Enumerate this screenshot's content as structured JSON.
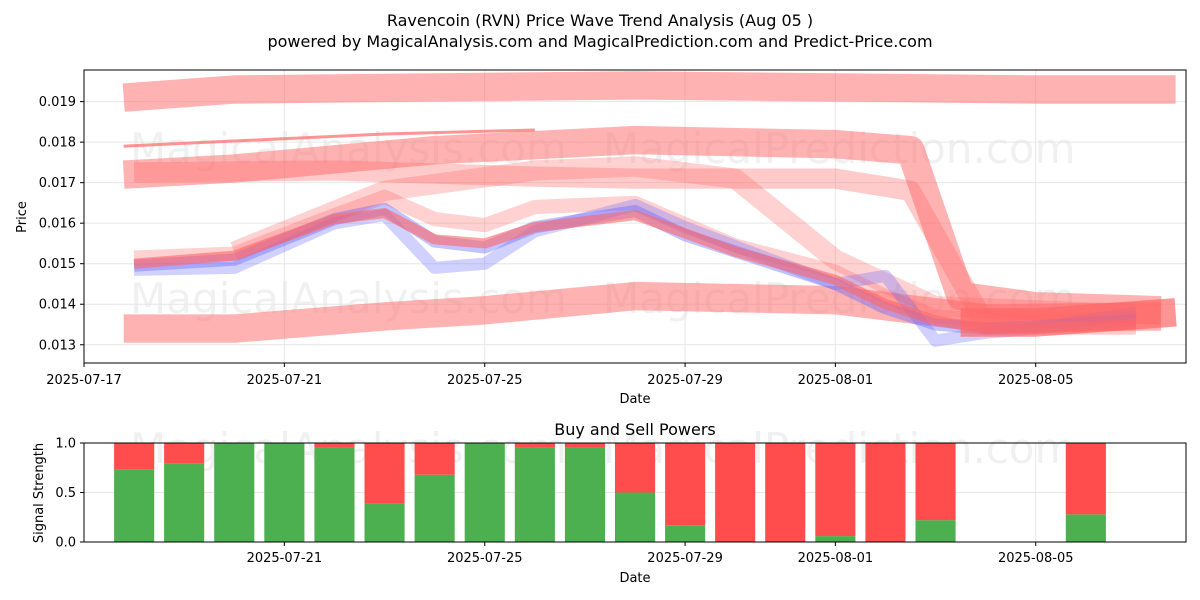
{
  "figure": {
    "title_line1": "Ravencoin (RVN) Price Wave Trend Analysis (Aug 05 )",
    "title_line2": "powered by MagicalAnalysis.com and MagicalPrediction.com and Predict-Price.com",
    "watermarks": [
      "MagicalAnalysis.com",
      "MagicalPrediction.com"
    ]
  },
  "colors": {
    "red_band": "#ff6666",
    "blue_band": "#6666ff",
    "buy": "#4caf50",
    "sell": "#ff4d4d",
    "grid": "#e6e6e6"
  },
  "chart_data": [
    {
      "type": "line",
      "title": "",
      "xlabel": "Date",
      "ylabel": "Price",
      "xlim": [
        "2025-07-17",
        "2025-08-08"
      ],
      "ylim": [
        0.01255,
        0.01978
      ],
      "grid": true,
      "xticks": [
        "2025-07-17",
        "2025-07-21",
        "2025-07-25",
        "2025-07-29",
        "2025-08-01",
        "2025-08-05"
      ],
      "yticks": [
        0.013,
        0.014,
        0.015,
        0.016,
        0.017,
        0.018,
        0.019
      ],
      "ytick_labels": [
        "0.013",
        "0.014",
        "0.015",
        "0.016",
        "0.017",
        "0.018",
        "0.019"
      ],
      "bands": [
        {
          "color": "red",
          "opacity": 0.5,
          "width": 0.0007,
          "points": [
            [
              "2025-07-17T19:00",
              0.0191
            ],
            [
              "2025-07-20",
              0.0193
            ],
            [
              "2025-07-24",
              0.01935
            ],
            [
              "2025-07-28",
              0.0194
            ],
            [
              "2025-08-01",
              0.01935
            ],
            [
              "2025-08-05",
              0.0193
            ],
            [
              "2025-08-07T19:00",
              0.0193
            ]
          ]
        },
        {
          "color": "red",
          "opacity": 0.5,
          "width": 0.0007,
          "points": [
            [
              "2025-07-17T19:00",
              0.0172
            ],
            [
              "2025-07-20",
              0.01735
            ],
            [
              "2025-07-24",
              0.0178
            ],
            [
              "2025-07-28",
              0.01805
            ],
            [
              "2025-08-01",
              0.01795
            ],
            [
              "2025-08-02T12:00",
              0.0178
            ],
            [
              "2025-08-03T12:00",
              0.0142
            ],
            [
              "2025-08-05",
              0.01395
            ],
            [
              "2025-08-07T12:00",
              0.01385
            ]
          ]
        },
        {
          "color": "red",
          "opacity": 0.5,
          "width": 0.0007,
          "points": [
            [
              "2025-07-17T19:00",
              0.0134
            ],
            [
              "2025-07-20",
              0.0134
            ],
            [
              "2025-07-23",
              0.0137
            ],
            [
              "2025-07-25",
              0.01385
            ],
            [
              "2025-07-28",
              0.0142
            ],
            [
              "2025-08-01",
              0.0141
            ],
            [
              "2025-08-04",
              0.01365
            ],
            [
              "2025-08-07T12:00",
              0.0137
            ]
          ]
        },
        {
          "color": "red",
          "opacity": 0.35,
          "width": 0.0005,
          "points": [
            [
              "2025-07-18",
              0.01725
            ],
            [
              "2025-07-22",
              0.0173
            ],
            [
              "2025-07-26",
              0.01715
            ],
            [
              "2025-07-28",
              0.0171
            ],
            [
              "2025-08-01",
              0.0171
            ],
            [
              "2025-08-02T12:00",
              0.0168
            ],
            [
              "2025-08-04",
              0.0135
            ],
            [
              "2025-08-07",
              0.0135
            ]
          ]
        },
        {
          "color": "red",
          "opacity": 0.3,
          "width": 0.0005,
          "points": [
            [
              "2025-07-20",
              0.0153
            ],
            [
              "2025-07-23",
              0.0168
            ],
            [
              "2025-07-26",
              0.0173
            ],
            [
              "2025-07-28",
              0.0174
            ],
            [
              "2025-07-30",
              0.0171
            ],
            [
              "2025-08-01",
              0.0151
            ],
            [
              "2025-08-03",
              0.01395
            ],
            [
              "2025-08-07",
              0.01375
            ]
          ]
        },
        {
          "color": "red",
          "opacity": 0.3,
          "width": 0.00035,
          "points": [
            [
              "2025-07-18",
              0.01515
            ],
            [
              "2025-07-20",
              0.01525
            ],
            [
              "2025-07-22",
              0.0162
            ],
            [
              "2025-07-23",
              0.01665
            ],
            [
              "2025-07-24",
              0.0161
            ],
            [
              "2025-07-25",
              0.01595
            ],
            [
              "2025-07-26",
              0.0164
            ],
            [
              "2025-07-28",
              0.0165
            ],
            [
              "2025-07-30",
              0.01545
            ],
            [
              "2025-08-01",
              0.0148
            ],
            [
              "2025-08-02",
              0.0142
            ],
            [
              "2025-08-03",
              0.0137
            ],
            [
              "2025-08-04",
              0.0136
            ],
            [
              "2025-08-05",
              0.0136
            ],
            [
              "2025-08-07",
              0.01365
            ]
          ]
        },
        {
          "color": "blue",
          "opacity": 0.4,
          "width": 0.0003,
          "points": [
            [
              "2025-07-18",
              0.01495
            ],
            [
              "2025-07-20",
              0.0151
            ],
            [
              "2025-07-22",
              0.0161
            ],
            [
              "2025-07-23",
              0.01635
            ],
            [
              "2025-07-24",
              0.01555
            ],
            [
              "2025-07-25",
              0.0154
            ],
            [
              "2025-07-26",
              0.0159
            ],
            [
              "2025-07-28",
              0.0163
            ],
            [
              "2025-07-29",
              0.0157
            ],
            [
              "2025-08-01",
              0.0145
            ],
            [
              "2025-08-02",
              0.0139
            ],
            [
              "2025-08-03",
              0.0135
            ],
            [
              "2025-08-04",
              0.0134
            ],
            [
              "2025-08-05",
              0.01345
            ],
            [
              "2025-08-07",
              0.0136
            ]
          ]
        },
        {
          "color": "blue",
          "opacity": 0.3,
          "width": 0.0003,
          "points": [
            [
              "2025-07-18",
              0.01485
            ],
            [
              "2025-07-20",
              0.0149
            ],
            [
              "2025-07-22",
              0.016
            ],
            [
              "2025-07-23",
              0.0162
            ],
            [
              "2025-07-24",
              0.0149
            ],
            [
              "2025-07-25",
              0.015
            ],
            [
              "2025-07-26",
              0.0158
            ],
            [
              "2025-07-28",
              0.01645
            ],
            [
              "2025-07-29",
              0.0159
            ],
            [
              "2025-08-01",
              0.0145
            ],
            [
              "2025-08-02",
              0.0147
            ],
            [
              "2025-08-03",
              0.0131
            ],
            [
              "2025-08-04",
              0.0133
            ],
            [
              "2025-08-05",
              0.0134
            ],
            [
              "2025-08-07",
              0.0138
            ]
          ]
        },
        {
          "color": "red",
          "opacity": 0.6,
          "width": 0.00025,
          "points": [
            [
              "2025-07-18",
              0.015
            ],
            [
              "2025-07-20",
              0.0152
            ],
            [
              "2025-07-22",
              0.0161
            ],
            [
              "2025-07-23",
              0.01625
            ],
            [
              "2025-07-24",
              0.0156
            ],
            [
              "2025-07-25",
              0.0155
            ],
            [
              "2025-07-26",
              0.0159
            ],
            [
              "2025-07-28",
              0.0162
            ],
            [
              "2025-07-30",
              0.0153
            ],
            [
              "2025-08-01",
              0.0146
            ],
            [
              "2025-08-02",
              0.014
            ],
            [
              "2025-08-03",
              0.0136
            ],
            [
              "2025-08-04",
              0.0134
            ],
            [
              "2025-08-05",
              0.0134
            ],
            [
              "2025-08-07",
              0.0135
            ]
          ]
        },
        {
          "color": "red",
          "opacity": 0.7,
          "width": 0.0007,
          "points": [
            [
              "2025-08-03T12:00",
              0.01355
            ],
            [
              "2025-08-05",
              0.01355
            ],
            [
              "2025-08-07T19:00",
              0.0138
            ]
          ]
        }
      ],
      "trend_line": {
        "color": "red",
        "points": [
          [
            "2025-07-17T19:00",
            0.0179
          ],
          [
            "2025-07-23",
            0.0182
          ],
          [
            "2025-07-26",
            0.0183
          ]
        ]
      }
    },
    {
      "type": "bar",
      "title": "Buy and Sell Powers",
      "xlabel": "Date",
      "ylabel": "Signal Strength",
      "xlim": [
        "2025-07-17",
        "2025-08-08"
      ],
      "ylim": [
        0,
        1
      ],
      "grid": true,
      "xticks": [
        "2025-07-21",
        "2025-07-25",
        "2025-07-29",
        "2025-08-01",
        "2025-08-05"
      ],
      "yticks": [
        0.0,
        0.5,
        1.0
      ],
      "ytick_labels": [
        "0.0",
        "0.5",
        "1.0"
      ],
      "categories": [
        "2025-07-18",
        "2025-07-19",
        "2025-07-20",
        "2025-07-21",
        "2025-07-22",
        "2025-07-23",
        "2025-07-24",
        "2025-07-25",
        "2025-07-26",
        "2025-07-27",
        "2025-07-28",
        "2025-07-29",
        "2025-07-30",
        "2025-07-31",
        "2025-08-01",
        "2025-08-02",
        "2025-08-03",
        "2025-08-06"
      ],
      "series": [
        {
          "name": "buy",
          "values": [
            0.73,
            0.79,
            1.0,
            1.0,
            0.95,
            0.39,
            0.68,
            1.0,
            0.95,
            0.95,
            0.5,
            0.17,
            0.0,
            0.0,
            0.06,
            0.0,
            0.22,
            0.28
          ]
        },
        {
          "name": "sell",
          "values": [
            0.27,
            0.21,
            0.0,
            0.0,
            0.05,
            0.61,
            0.32,
            0.0,
            0.05,
            0.05,
            0.5,
            0.83,
            1.0,
            1.0,
            0.94,
            1.0,
            0.78,
            0.72
          ]
        }
      ]
    }
  ]
}
